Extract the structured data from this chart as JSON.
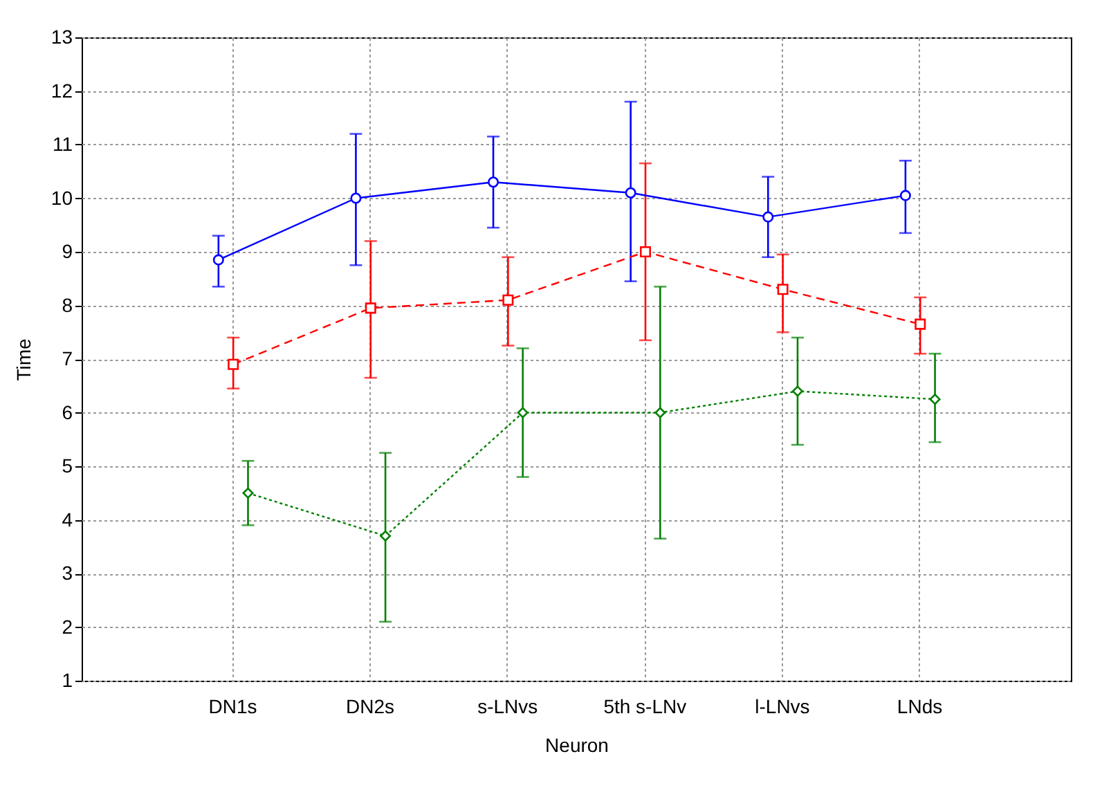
{
  "chart_data": {
    "type": "line",
    "xlabel": "Neuron",
    "ylabel": "Time",
    "categories": [
      "DN1s",
      "DN2s",
      "s-LNvs",
      "5th s-LNv",
      "l-LNvs",
      "LNds"
    ],
    "ylim": [
      1,
      13
    ],
    "yticks": [
      1,
      2,
      3,
      4,
      5,
      6,
      7,
      8,
      9,
      10,
      11,
      12,
      13
    ],
    "grid": true,
    "legend": false,
    "series": [
      {
        "color": "#0000ff",
        "marker": "circle",
        "line_style": "solid",
        "values": [
          8.85,
          10.0,
          10.3,
          10.1,
          9.65,
          10.05
        ],
        "errors": [
          [
            8.35,
            9.3
          ],
          [
            8.75,
            11.2
          ],
          [
            9.45,
            11.15
          ],
          [
            8.45,
            11.8
          ],
          [
            8.9,
            10.4
          ],
          [
            9.35,
            10.7
          ]
        ]
      },
      {
        "color": "#ff0000",
        "marker": "square",
        "line_style": "dashed",
        "values": [
          6.9,
          7.95,
          8.1,
          9.0,
          8.3,
          7.65
        ],
        "errors": [
          [
            6.45,
            7.4
          ],
          [
            6.65,
            9.2
          ],
          [
            7.25,
            8.9
          ],
          [
            7.35,
            10.65
          ],
          [
            7.5,
            8.95
          ],
          [
            7.1,
            8.15
          ]
        ]
      },
      {
        "color": "#008000",
        "marker": "diamond",
        "line_style": "dotted",
        "values": [
          4.5,
          3.7,
          6.0,
          6.0,
          6.4,
          6.25
        ],
        "errors": [
          [
            3.9,
            5.1
          ],
          [
            2.1,
            5.25
          ],
          [
            4.8,
            7.2
          ],
          [
            3.65,
            8.35
          ],
          [
            5.4,
            7.4
          ],
          [
            5.45,
            7.1
          ]
        ]
      }
    ]
  }
}
